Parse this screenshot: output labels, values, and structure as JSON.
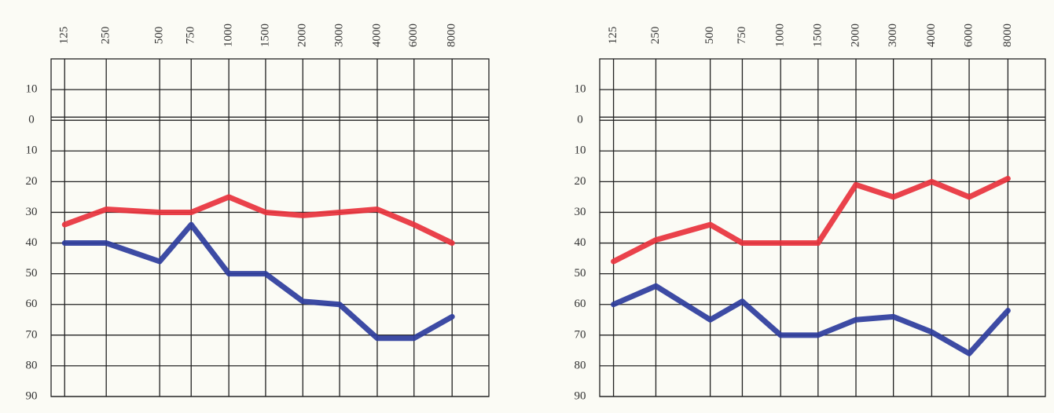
{
  "chart_data": [
    {
      "type": "line",
      "categories": [
        "125",
        "250",
        "500",
        "750",
        "1000",
        "1500",
        "2000",
        "3000",
        "4000",
        "6000",
        "8000"
      ],
      "series": [
        {
          "color": "#e8323c",
          "values": [
            34,
            29,
            30,
            30,
            25,
            30,
            31,
            30,
            29,
            34,
            40
          ]
        },
        {
          "color": "#2d3c9c",
          "values": [
            40,
            40,
            46,
            34,
            50,
            50,
            59,
            60,
            71,
            71,
            64
          ]
        }
      ],
      "ylim": [
        -20,
        90
      ],
      "inverted": true,
      "yticks": [
        {
          "value": -10,
          "label": "10"
        },
        0,
        10,
        20,
        30,
        40,
        50,
        60,
        70,
        80,
        90
      ],
      "grid": true
    },
    {
      "type": "line",
      "categories": [
        "125",
        "250",
        "500",
        "750",
        "1000",
        "1500",
        "2000",
        "3000",
        "4000",
        "6000",
        "8000"
      ],
      "series": [
        {
          "color": "#e8323c",
          "values": [
            46,
            39,
            34,
            40,
            40,
            40,
            21,
            25,
            20,
            25,
            19
          ]
        },
        {
          "color": "#2d3c9c",
          "values": [
            60,
            54,
            65,
            59,
            70,
            70,
            65,
            64,
            69,
            76,
            62
          ]
        }
      ],
      "ylim": [
        -20,
        90
      ],
      "inverted": true,
      "yticks": [
        {
          "value": -10,
          "label": "10"
        },
        0,
        10,
        20,
        30,
        40,
        50,
        60,
        70,
        80,
        90
      ],
      "grid": true
    }
  ]
}
